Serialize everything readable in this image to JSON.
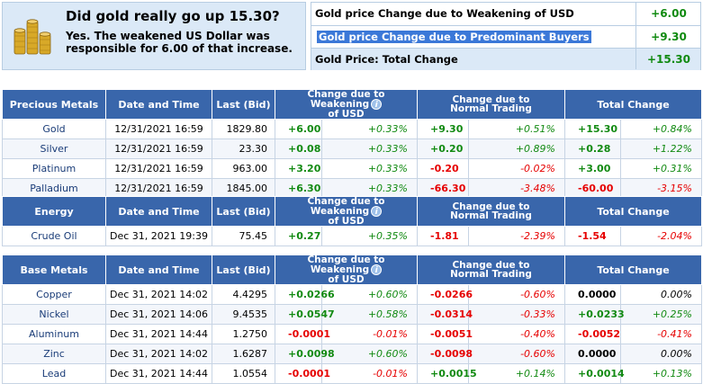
{
  "promo": {
    "question": "Did gold really go up 15.30?",
    "answer": "Yes. The weakened US Dollar was responsible for 6.00 of that increase."
  },
  "summary": {
    "rows": [
      {
        "label": "Gold price Change due to Weakening of USD",
        "value": "+6.00"
      },
      {
        "label": "Gold price Change due to Predominant Buyers",
        "value": "+9.30"
      },
      {
        "label": "Gold Price: Total Change",
        "value": "+15.30"
      }
    ]
  },
  "headers": {
    "date_time": "Date and Time",
    "last_bid": "Last (Bid)",
    "usd_l1": "Change due to Weakening",
    "usd_l2": "of USD",
    "trade_l1": "Change due to",
    "trade_l2": "Normal Trading",
    "total": "Total Change",
    "info_icon": "i"
  },
  "tables": [
    {
      "title": "Precious Metals",
      "rows": [
        {
          "name": "Gold",
          "dt": "12/31/2021 16:59",
          "bid": "1829.80",
          "usd": "+6.00",
          "usd_pct": "+0.33%",
          "trade": "+9.30",
          "trade_pct": "+0.51%",
          "total": "+15.30",
          "total_pct": "+0.84%"
        },
        {
          "name": "Silver",
          "dt": "12/31/2021 16:59",
          "bid": "23.30",
          "usd": "+0.08",
          "usd_pct": "+0.33%",
          "trade": "+0.20",
          "trade_pct": "+0.89%",
          "total": "+0.28",
          "total_pct": "+1.22%"
        },
        {
          "name": "Platinum",
          "dt": "12/31/2021 16:59",
          "bid": "963.00",
          "usd": "+3.20",
          "usd_pct": "+0.33%",
          "trade": "-0.20",
          "trade_pct": "-0.02%",
          "total": "+3.00",
          "total_pct": "+0.31%"
        },
        {
          "name": "Palladium",
          "dt": "12/31/2021 16:59",
          "bid": "1845.00",
          "usd": "+6.30",
          "usd_pct": "+0.33%",
          "trade": "-66.30",
          "trade_pct": "-3.48%",
          "total": "-60.00",
          "total_pct": "-3.15%"
        }
      ]
    },
    {
      "title": "Energy",
      "rows": [
        {
          "name": "Crude Oil",
          "dt": "Dec 31, 2021 19:39",
          "bid": "75.45",
          "usd": "+0.27",
          "usd_pct": "+0.35%",
          "trade": "-1.81",
          "trade_pct": "-2.39%",
          "total": "-1.54",
          "total_pct": "-2.04%"
        }
      ]
    },
    {
      "title": "Base Metals",
      "rows": [
        {
          "name": "Copper",
          "dt": "Dec 31, 2021 14:02",
          "bid": "4.4295",
          "usd": "+0.0266",
          "usd_pct": "+0.60%",
          "trade": "-0.0266",
          "trade_pct": "-0.60%",
          "total": "0.0000",
          "total_pct": "0.00%"
        },
        {
          "name": "Nickel",
          "dt": "Dec 31, 2021 14:06",
          "bid": "9.4535",
          "usd": "+0.0547",
          "usd_pct": "+0.58%",
          "trade": "-0.0314",
          "trade_pct": "-0.33%",
          "total": "+0.0233",
          "total_pct": "+0.25%"
        },
        {
          "name": "Aluminum",
          "dt": "Dec 31, 2021 14:44",
          "bid": "1.2750",
          "usd": "-0.0001",
          "usd_pct": "-0.01%",
          "trade": "-0.0051",
          "trade_pct": "-0.40%",
          "total": "-0.0052",
          "total_pct": "-0.41%"
        },
        {
          "name": "Zinc",
          "dt": "Dec 31, 2021 14:02",
          "bid": "1.6287",
          "usd": "+0.0098",
          "usd_pct": "+0.60%",
          "trade": "-0.0098",
          "trade_pct": "-0.60%",
          "total": "0.0000",
          "total_pct": "0.00%"
        },
        {
          "name": "Lead",
          "dt": "Dec 31, 2021 14:44",
          "bid": "1.0554",
          "usd": "-0.0001",
          "usd_pct": "-0.01%",
          "trade": "+0.0015",
          "trade_pct": "+0.14%",
          "total": "+0.0014",
          "total_pct": "+0.13%"
        }
      ]
    }
  ],
  "colors": {
    "header_bg": "#3966ab",
    "positive": "#128a12",
    "negative": "#e60000",
    "panel_bg": "#dbe9f7",
    "selection": "#3b78d8"
  }
}
